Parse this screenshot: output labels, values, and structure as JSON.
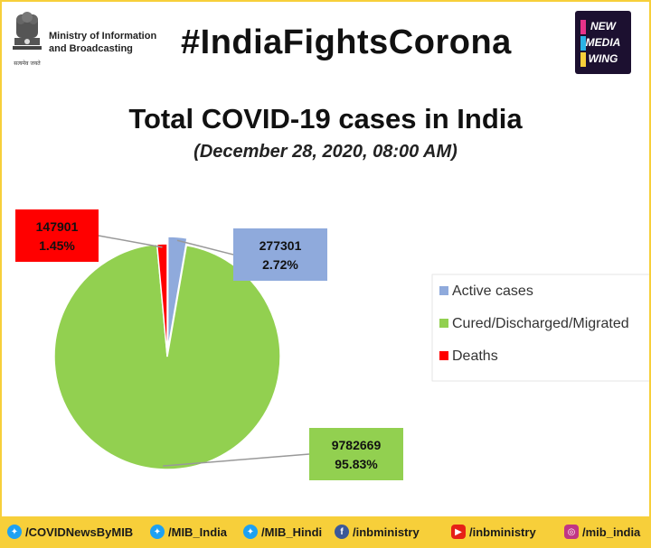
{
  "header": {
    "ministry_line1": "Ministry of Information",
    "ministry_line2": "and Broadcasting",
    "emblem_motto": "सत्यमेव जयते",
    "hashtag": "#IndiaFightsCorona",
    "logo_line1": "NEW",
    "logo_line2": "MEDIA",
    "logo_line3": "WING"
  },
  "chart_data": {
    "type": "pie",
    "title": "Total COVID-19 cases in India",
    "subtitle": "(December 28, 2020, 08:00 AM)",
    "legend_position": "right",
    "slices": [
      {
        "name": "Active cases",
        "value": 277301,
        "label_value": "277301",
        "label_pct": "2.72%",
        "color": "#8faadc"
      },
      {
        "name": "Cured/Discharged/Migrated",
        "value": 9782669,
        "label_value": "9782669",
        "label_pct": "95.83%",
        "color": "#92d050"
      },
      {
        "name": "Deaths",
        "value": 147901,
        "label_value": "147901",
        "label_pct": "1.45%",
        "color": "#ff0000"
      }
    ]
  },
  "footer": {
    "items": [
      {
        "icon": "twitter-icon",
        "text": "/COVIDNewsByMIB",
        "color": "#1da1f2"
      },
      {
        "icon": "twitter-icon",
        "text": "/MIB_India",
        "color": "#1da1f2"
      },
      {
        "icon": "twitter-icon",
        "text": "/MIB_Hindi",
        "color": "#1da1f2"
      },
      {
        "icon": "facebook-icon",
        "text": "/inbministry",
        "color": "#3b5998"
      },
      {
        "icon": "youtube-icon",
        "text": "/inbministry",
        "color": "#e62117"
      },
      {
        "icon": "instagram-icon",
        "text": "/mib_india",
        "color": "#c13584"
      }
    ]
  }
}
